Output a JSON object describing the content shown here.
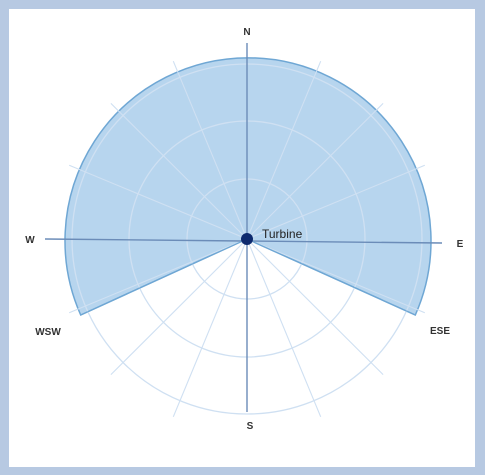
{
  "diagram": {
    "center_label": "Turbine",
    "directions": {
      "n": "N",
      "e": "E",
      "s": "S",
      "w": "W",
      "wsw": "WSW",
      "ese": "ESE"
    },
    "shaded_sector": {
      "from": "WSW",
      "through": "N",
      "to": "ESE"
    },
    "colors": {
      "background": "#b7c9e2",
      "sector_fill": "#b7d5ee",
      "sector_stroke": "#6fa7d4",
      "ring_stroke": "#cfe0f2",
      "axis_stroke": "#6b8cb8",
      "center_dot": "#0e2a6e"
    }
  }
}
